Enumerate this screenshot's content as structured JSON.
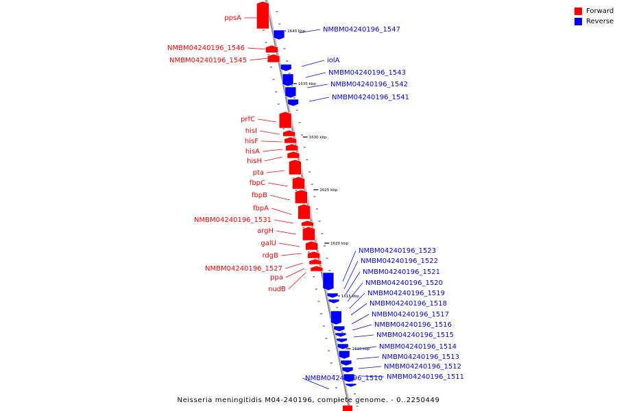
{
  "caption": "Neisseria meningitidis M04-240196, complete genome. - 0..2250449",
  "legend": [
    {
      "label": "Forward",
      "color": "#ff0000"
    },
    {
      "label": "Reverse",
      "color": "#0000ff"
    }
  ],
  "colors": {
    "forward": "#ff0000",
    "reverse": "#0000ff",
    "axis": "#888888"
  },
  "ticks": [
    {
      "label": "1640 kbp"
    },
    {
      "label": "1635 kbp"
    },
    {
      "label": "1630 kbp"
    },
    {
      "label": "1625 kbp"
    },
    {
      "label": "1620 kbp"
    },
    {
      "label": "1615 kbp"
    },
    {
      "label": "1610 kbp"
    }
  ],
  "genes": [
    {
      "label": "ppsA",
      "strand": "forward"
    },
    {
      "label": "NMBM04240196_1546",
      "strand": "forward"
    },
    {
      "label": "NMBM04240196_1545",
      "strand": "forward"
    },
    {
      "label": "prfC",
      "strand": "forward"
    },
    {
      "label": "hisI",
      "strand": "forward"
    },
    {
      "label": "hisF",
      "strand": "forward"
    },
    {
      "label": "hisA",
      "strand": "forward"
    },
    {
      "label": "hisH",
      "strand": "forward"
    },
    {
      "label": "pta",
      "strand": "forward"
    },
    {
      "label": "fbpC",
      "strand": "forward"
    },
    {
      "label": "fbpB",
      "strand": "forward"
    },
    {
      "label": "fbpA",
      "strand": "forward"
    },
    {
      "label": "NMBM04240196_1531",
      "strand": "forward"
    },
    {
      "label": "argH",
      "strand": "forward"
    },
    {
      "label": "galU",
      "strand": "forward"
    },
    {
      "label": "rdgB",
      "strand": "forward"
    },
    {
      "label": "NMBM04240196_1527",
      "strand": "forward"
    },
    {
      "label": "ppa",
      "strand": "forward"
    },
    {
      "label": "nudB",
      "strand": "forward"
    },
    {
      "label": "NMBM04240196_1547",
      "strand": "reverse"
    },
    {
      "label": "iolA",
      "strand": "reverse"
    },
    {
      "label": "NMBM04240196_1543",
      "strand": "reverse"
    },
    {
      "label": "NMBM04240196_1542",
      "strand": "reverse"
    },
    {
      "label": "NMBM04240196_1541",
      "strand": "reverse"
    },
    {
      "label": "NMBM04240196_1523",
      "strand": "reverse"
    },
    {
      "label": "NMBM04240196_1522",
      "strand": "reverse"
    },
    {
      "label": "NMBM04240196_1521",
      "strand": "reverse"
    },
    {
      "label": "NMBM04240196_1520",
      "strand": "reverse"
    },
    {
      "label": "NMBM04240196_1519",
      "strand": "reverse"
    },
    {
      "label": "NMBM04240196_1518",
      "strand": "reverse"
    },
    {
      "label": "NMBM04240196_1517",
      "strand": "reverse"
    },
    {
      "label": "NMBM04240196_1516",
      "strand": "reverse"
    },
    {
      "label": "NMBM04240196_1515",
      "strand": "reverse"
    },
    {
      "label": "NMBM04240196_1514",
      "strand": "reverse"
    },
    {
      "label": "NMBM04240196_1513",
      "strand": "reverse"
    },
    {
      "label": "NMBM04240196_1512",
      "strand": "reverse"
    },
    {
      "label": "NMBM04240196_1511",
      "strand": "reverse"
    },
    {
      "label": "NMBM04240196_1510",
      "strand": "reverse"
    }
  ]
}
